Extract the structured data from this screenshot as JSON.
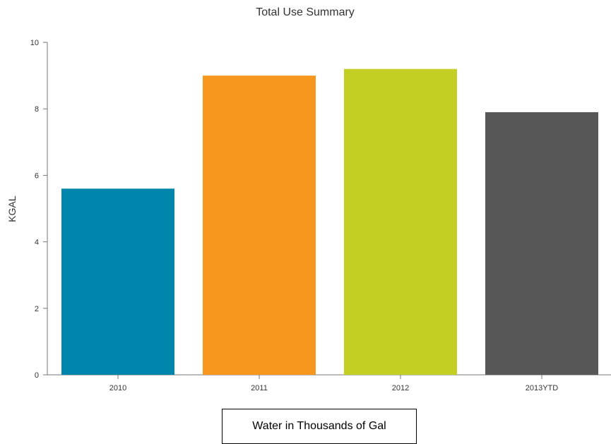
{
  "chart_data": {
    "type": "bar",
    "title": "Total Use Summary",
    "ylabel": "KGAL",
    "xlabel": "",
    "categories": [
      "2010",
      "2011",
      "2012",
      "2013YTD"
    ],
    "values": [
      5.6,
      9.0,
      9.2,
      7.9
    ],
    "colors": [
      "#0085ad",
      "#f7971e",
      "#c3cf22",
      "#575757"
    ],
    "ylim": [
      0,
      10
    ],
    "yticks": [
      0,
      2,
      4,
      6,
      8,
      10
    ],
    "grid": false,
    "legend": "none"
  },
  "caption": "Water in Thousands of Gal"
}
